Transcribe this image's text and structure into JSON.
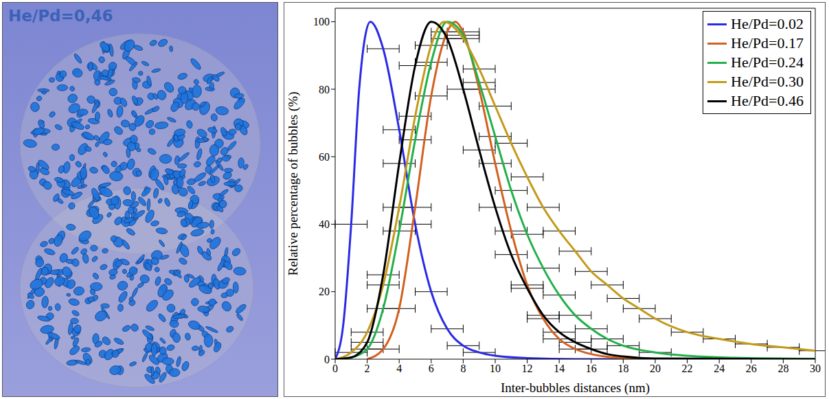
{
  "image_label": "He/Pd=0,46",
  "chart_data": {
    "type": "line",
    "xlabel": "Inter-bubbles distances (nm)",
    "ylabel": "Relative percentage of bubbles (%)",
    "xlim": [
      0,
      30
    ],
    "xticks": [
      0,
      2,
      4,
      6,
      8,
      10,
      12,
      14,
      16,
      18,
      20,
      22,
      24,
      26,
      28,
      30
    ],
    "ylim": [
      0,
      104
    ],
    "yticks": [
      0,
      20,
      40,
      60,
      80,
      100
    ],
    "grid": false,
    "legend": "upper right",
    "series": [
      {
        "name": "He/Pd=0.02",
        "color": "#2a2ae6",
        "x": [
          0,
          0.5,
          1,
          1.5,
          2.2,
          3,
          4,
          5,
          6,
          7,
          8,
          9,
          10,
          12,
          15,
          30
        ],
        "values": [
          0,
          10,
          40,
          80,
          100,
          92,
          68,
          40,
          20,
          9,
          4,
          2,
          1,
          0.3,
          0,
          0
        ],
        "x_error": [
          null,
          null,
          1,
          null,
          null,
          1,
          1,
          1,
          1,
          1,
          1,
          1,
          null,
          null,
          null,
          null
        ]
      },
      {
        "name": "He/Pd=0.17",
        "color": "#d2601e",
        "x": [
          2,
          3,
          4,
          5,
          6,
          7,
          7.5,
          8,
          9,
          10,
          11,
          12,
          13,
          14,
          15,
          16,
          17,
          18,
          20,
          30
        ],
        "values": [
          0,
          3,
          15,
          45,
          78,
          97,
          100,
          97,
          80,
          58,
          38,
          22,
          12,
          6,
          3,
          1.5,
          0.7,
          0.3,
          0,
          0
        ],
        "x_error": [
          null,
          1,
          1,
          1,
          1,
          1,
          null,
          1,
          1,
          1,
          1,
          1,
          1,
          1,
          1,
          null,
          null,
          null,
          null,
          null
        ]
      },
      {
        "name": "He/Pd=0.24",
        "color": "#22b04a",
        "x": [
          0,
          1,
          2,
          3,
          4,
          5,
          6,
          7,
          8,
          9,
          10,
          11,
          12,
          13,
          14,
          15,
          16,
          17,
          18,
          20,
          22,
          25,
          30
        ],
        "values": [
          0,
          0.5,
          3,
          15,
          38,
          65,
          88,
          100,
          96,
          82,
          66,
          50,
          37,
          27,
          19,
          13,
          9,
          6,
          4,
          2,
          1,
          0.4,
          0.1
        ],
        "x_error": [
          null,
          null,
          1,
          1,
          1,
          1,
          1,
          null,
          1,
          1,
          1,
          1,
          1,
          1,
          1,
          1,
          1,
          1,
          1,
          1,
          null,
          null,
          null
        ]
      },
      {
        "name": "He/Pd=0.30",
        "color": "#c49a1a",
        "x": [
          0,
          1,
          2,
          3,
          4,
          5,
          6,
          6.8,
          8,
          9,
          10,
          11,
          12,
          13,
          14,
          15,
          16,
          17,
          18,
          19,
          20,
          22,
          24,
          26,
          28,
          30
        ],
        "values": [
          0,
          2,
          8,
          22,
          45,
          72,
          93,
          100,
          95,
          86,
          75,
          64,
          54,
          45,
          38,
          32,
          26,
          22,
          18,
          15,
          12,
          8,
          6,
          4.5,
          3.5,
          2.5
        ],
        "x_error": [
          null,
          1,
          1,
          1,
          1,
          1,
          1,
          null,
          1,
          1,
          1,
          1,
          1,
          1,
          1,
          1,
          1,
          1,
          1,
          1,
          1,
          1,
          1,
          1,
          1,
          1
        ]
      },
      {
        "name": "He/Pd=0.46",
        "color": "#000000",
        "x": [
          0,
          1,
          2,
          3,
          4,
          5,
          6,
          7,
          8,
          9,
          10,
          11,
          12,
          13,
          14,
          15,
          16,
          17,
          18,
          20,
          30
        ],
        "values": [
          0,
          0.5,
          5,
          25,
          58,
          87,
          100,
          95,
          80,
          62,
          45,
          31,
          21,
          13,
          8,
          5,
          3,
          1.5,
          0.8,
          0.2,
          0
        ],
        "x_error": [
          null,
          null,
          1,
          1,
          1,
          1,
          null,
          1,
          1,
          1,
          1,
          1,
          1,
          1,
          1,
          1,
          1,
          null,
          null,
          null,
          null
        ]
      }
    ]
  }
}
